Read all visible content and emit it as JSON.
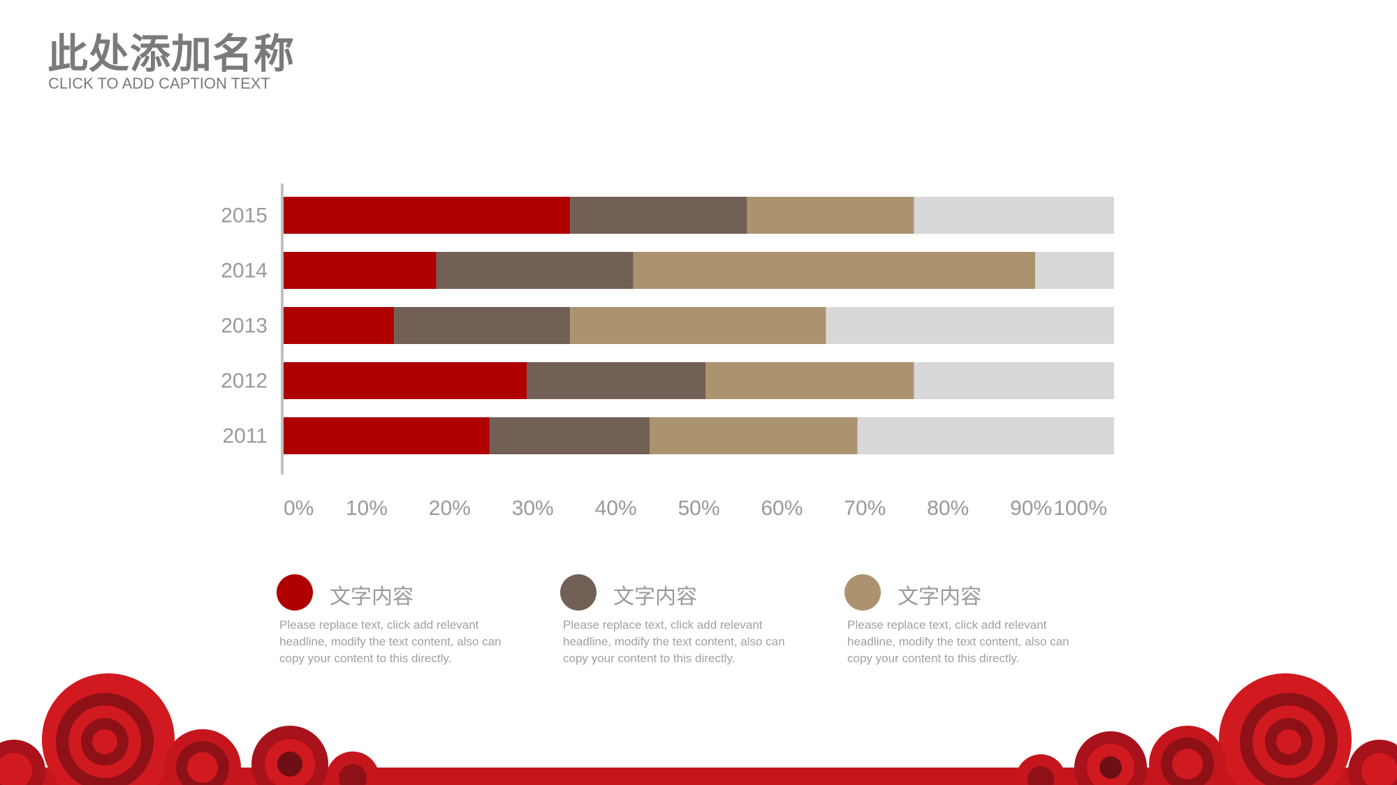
{
  "header": {
    "title": "此处添加名称",
    "subtitle": "CLICK TO ADD CAPTION TEXT"
  },
  "colors": {
    "series": [
      "#ae0000",
      "#725f55",
      "#ab9370",
      "#d8d8d8"
    ],
    "text": "#999999",
    "axis": "#bfbfbf",
    "decor_red": "#d11920",
    "decor_dark": "#6d0f14"
  },
  "chart_data": {
    "type": "bar",
    "orientation": "horizontal",
    "stacked": true,
    "categories": [
      "2015",
      "2014",
      "2013",
      "2012",
      "2011"
    ],
    "x_ticks": [
      "0%",
      "10%",
      "20%",
      "30%",
      "40%",
      "50%",
      "60%",
      "70%",
      "80%",
      "90%",
      "100%"
    ],
    "xlim": [
      0,
      100
    ],
    "series": [
      {
        "values": [
          34.5,
          18.4,
          13.3,
          29.3,
          24.8
        ]
      },
      {
        "values": [
          21.3,
          23.7,
          21.2,
          21.5,
          19.3
        ]
      },
      {
        "values": [
          20.1,
          48.4,
          30.8,
          25.1,
          25.0
        ]
      },
      {
        "values": [
          24.1,
          9.5,
          34.7,
          24.1,
          30.9
        ]
      }
    ],
    "grid": false
  },
  "legend": [
    {
      "label": "文字内容",
      "color": "#ae0000",
      "desc": "Please replace text, click add relevant headline, modify the text content, also can copy your content to this directly."
    },
    {
      "label": "文字内容",
      "color": "#725f55",
      "desc": "Please replace text, click add relevant headline, modify the text content, also can copy your content to this directly."
    },
    {
      "label": "文字内容",
      "color": "#ab9370",
      "desc": "Please replace text, click add relevant headline, modify the text content, also can copy your content to this directly."
    }
  ]
}
